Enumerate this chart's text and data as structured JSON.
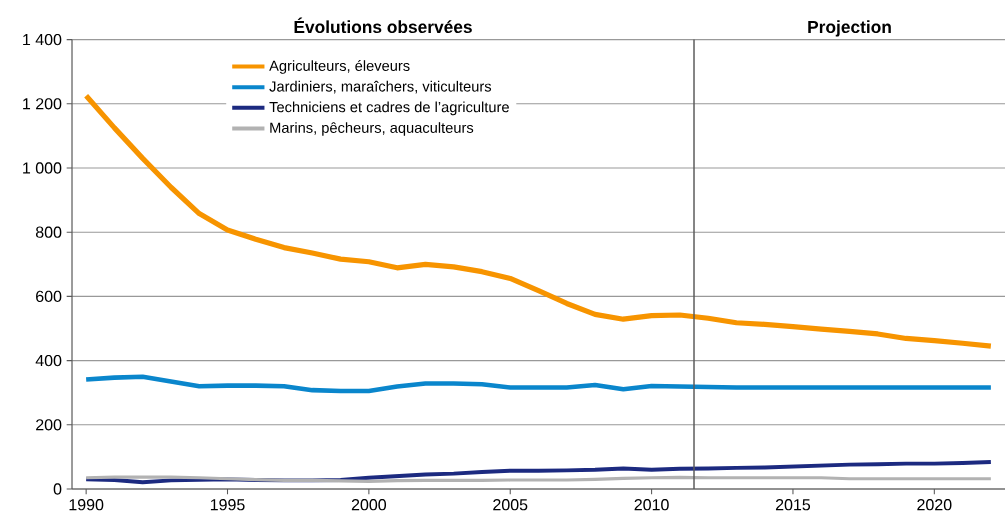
{
  "chart_data": {
    "type": "line",
    "annotations": [
      "Évolutions observées",
      "Projection"
    ],
    "x": [
      1990,
      1991,
      1992,
      1993,
      1994,
      1995,
      1996,
      1997,
      1998,
      1999,
      2000,
      2001,
      2002,
      2003,
      2004,
      2005,
      2006,
      2007,
      2008,
      2009,
      2010,
      2011,
      2012,
      2013,
      2014,
      2015,
      2016,
      2017,
      2018,
      2019,
      2020,
      2021,
      2022
    ],
    "series": [
      {
        "name": "Agriculteurs, éleveurs",
        "color": "#f79400",
        "values": [
          1225,
          1125,
          1030,
          940,
          858,
          807,
          778,
          752,
          735,
          716,
          708,
          689,
          700,
          692,
          677,
          656,
          618,
          578,
          544,
          529,
          540,
          542,
          532,
          518,
          513,
          506,
          498,
          491,
          483,
          469,
          462,
          454,
          445
        ]
      },
      {
        "name": "Jardiniers, maraîchers, viticulteurs",
        "color": "#0a86cc",
        "values": [
          341,
          347,
          350,
          335,
          320,
          322,
          322,
          320,
          308,
          305,
          305,
          319,
          329,
          329,
          326,
          316,
          316,
          316,
          324,
          311,
          321,
          319,
          318,
          316,
          316,
          316,
          316,
          316,
          316,
          316,
          316,
          316,
          316
        ]
      },
      {
        "name": "Techniciens et cadres de l’agriculture",
        "color": "#1c2a80",
        "values": [
          30,
          28,
          21,
          27,
          29,
          30,
          28,
          27,
          27,
          28,
          35,
          40,
          45,
          48,
          53,
          57,
          57,
          58,
          60,
          64,
          60,
          63,
          64,
          66,
          67,
          70,
          73,
          76,
          77,
          79,
          79,
          81,
          84
        ]
      },
      {
        "name": "Marins, pêcheurs, aquaculteurs",
        "color": "#b2b2b2",
        "values": [
          35,
          37,
          37,
          37,
          35,
          32,
          29,
          27,
          27,
          25,
          24,
          26,
          27,
          27,
          27,
          28,
          28,
          28,
          30,
          33,
          35,
          36,
          35,
          35,
          35,
          35,
          35,
          32,
          32,
          32,
          32,
          32,
          32
        ]
      }
    ],
    "xlim": [
      1989.5,
      2022.5
    ],
    "xticks": [
      1990,
      1995,
      2000,
      2005,
      2010,
      2015,
      2020
    ],
    "ylim": [
      0,
      1400
    ],
    "yticks": [
      0,
      200,
      400,
      600,
      800,
      {
        "value": 1000,
        "label": "1 000"
      },
      {
        "value": 1200,
        "label": "1 200"
      },
      {
        "value": 1400,
        "label": "1 400"
      }
    ],
    "ref_lines": [
      {
        "axis": "x",
        "value": 2011.5,
        "color": "#595959"
      }
    ],
    "grid": "y",
    "legend": "top left",
    "marker": "none",
    "line_style": "solid"
  }
}
